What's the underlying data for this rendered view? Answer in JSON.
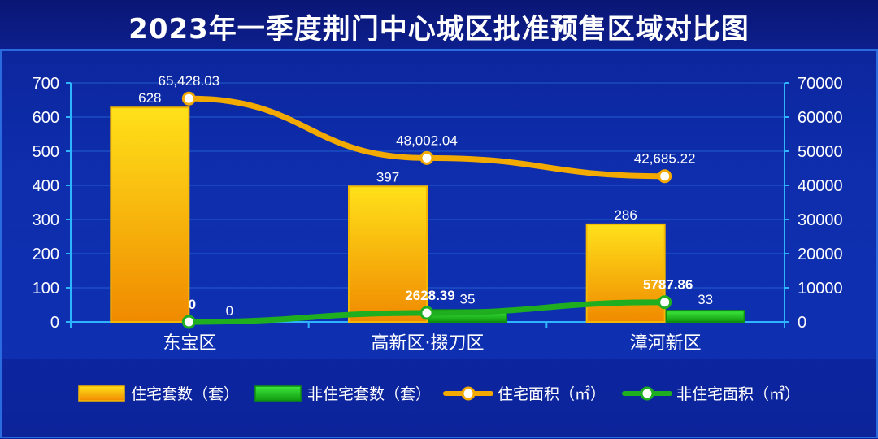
{
  "chart_data": {
    "type": "bar",
    "title": "2023年一季度荆门中心城区批准预售区域对比图",
    "categories": [
      "东宝区",
      "高新区·掇刀区",
      "漳河新区"
    ],
    "y_left": {
      "ylim": [
        0,
        700
      ],
      "ticks": [
        0,
        100,
        200,
        300,
        400,
        500,
        600,
        700
      ]
    },
    "y_right": {
      "ylim": [
        0,
        70000
      ],
      "ticks": [
        0,
        10000,
        20000,
        30000,
        40000,
        50000,
        60000,
        70000
      ]
    },
    "series": [
      {
        "name": "住宅套数（套）",
        "kind": "bar",
        "axis": "left",
        "values": [
          628,
          397,
          286
        ],
        "labels": [
          "628",
          "397",
          "286"
        ],
        "color": "#f5a800"
      },
      {
        "name": "非住宅套数（套）",
        "kind": "bar",
        "axis": "left",
        "values": [
          0,
          35,
          33
        ],
        "labels": [
          "0",
          "35",
          "33"
        ],
        "color": "#19c219"
      },
      {
        "name": "住宅面积（㎡）",
        "kind": "line",
        "axis": "right",
        "values": [
          65428.03,
          48002.04,
          42685.22
        ],
        "labels": [
          "65,428.03",
          "48,002.04",
          "42,685.22"
        ],
        "color": "#f2a900"
      },
      {
        "name": "非住宅面积（㎡）",
        "kind": "line",
        "axis": "right",
        "values": [
          0,
          2628.39,
          5787.86
        ],
        "labels": [
          "0",
          "2628.39",
          "5787.86"
        ],
        "color": "#1fae1f"
      }
    ],
    "grid": true,
    "legend": "bottom"
  }
}
